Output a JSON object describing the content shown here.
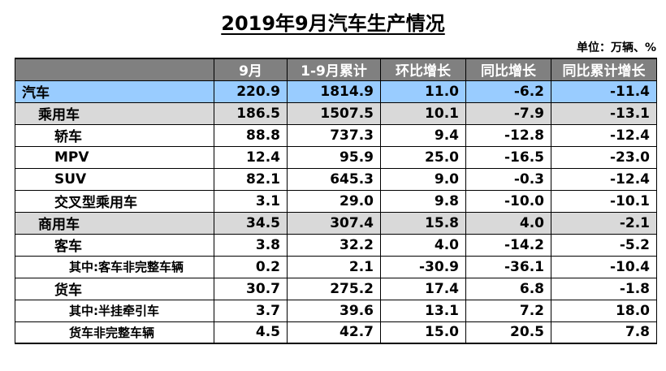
{
  "title": "2019年9月汽车生产情况",
  "unit": "单位：万辆、%",
  "headers": [
    "",
    "9月",
    "1-9月累计",
    "环比增长",
    "同比增长",
    "同比累计增长"
  ],
  "rows": [
    {
      "label": "汽车",
      "values": [
        "220.9",
        "1814.9",
        "11.0",
        "-6.2",
        "-11.4"
      ]
    },
    {
      "label": "乘用车",
      "values": [
        "186.5",
        "1507.5",
        "10.1",
        "-7.9",
        "-13.1"
      ]
    },
    {
      "label": "轿车",
      "values": [
        "88.8",
        "737.3",
        "9.4",
        "-12.8",
        "-12.4"
      ]
    },
    {
      "label": "MPV",
      "values": [
        "12.4",
        "95.9",
        "25.0",
        "-16.5",
        "-23.0"
      ]
    },
    {
      "label": "SUV",
      "values": [
        "82.1",
        "645.3",
        "9.0",
        "-0.3",
        "-12.4"
      ]
    },
    {
      "label": "交叉型乘用车",
      "values": [
        "3.1",
        "29.0",
        "9.8",
        "-10.0",
        "-10.1"
      ]
    },
    {
      "label": "商用车",
      "values": [
        "34.5",
        "307.4",
        "15.8",
        "4.0",
        "-2.1"
      ]
    },
    {
      "label": "客车",
      "values": [
        "3.8",
        "32.2",
        "4.0",
        "-14.2",
        "-5.2"
      ]
    },
    {
      "label": "其中:客车非完整车辆",
      "values": [
        "0.2",
        "2.1",
        "-30.9",
        "-36.1",
        "-10.4"
      ]
    },
    {
      "label": "货车",
      "values": [
        "30.7",
        "275.2",
        "17.4",
        "6.8",
        "-1.8"
      ]
    },
    {
      "label": "其中:半挂牵引车",
      "values": [
        "3.7",
        "39.6",
        "13.1",
        "7.2",
        "18.0"
      ]
    },
    {
      "label": "货车非完整车辆",
      "values": [
        "4.5",
        "42.7",
        "15.0",
        "20.5",
        "7.8"
      ]
    }
  ]
}
